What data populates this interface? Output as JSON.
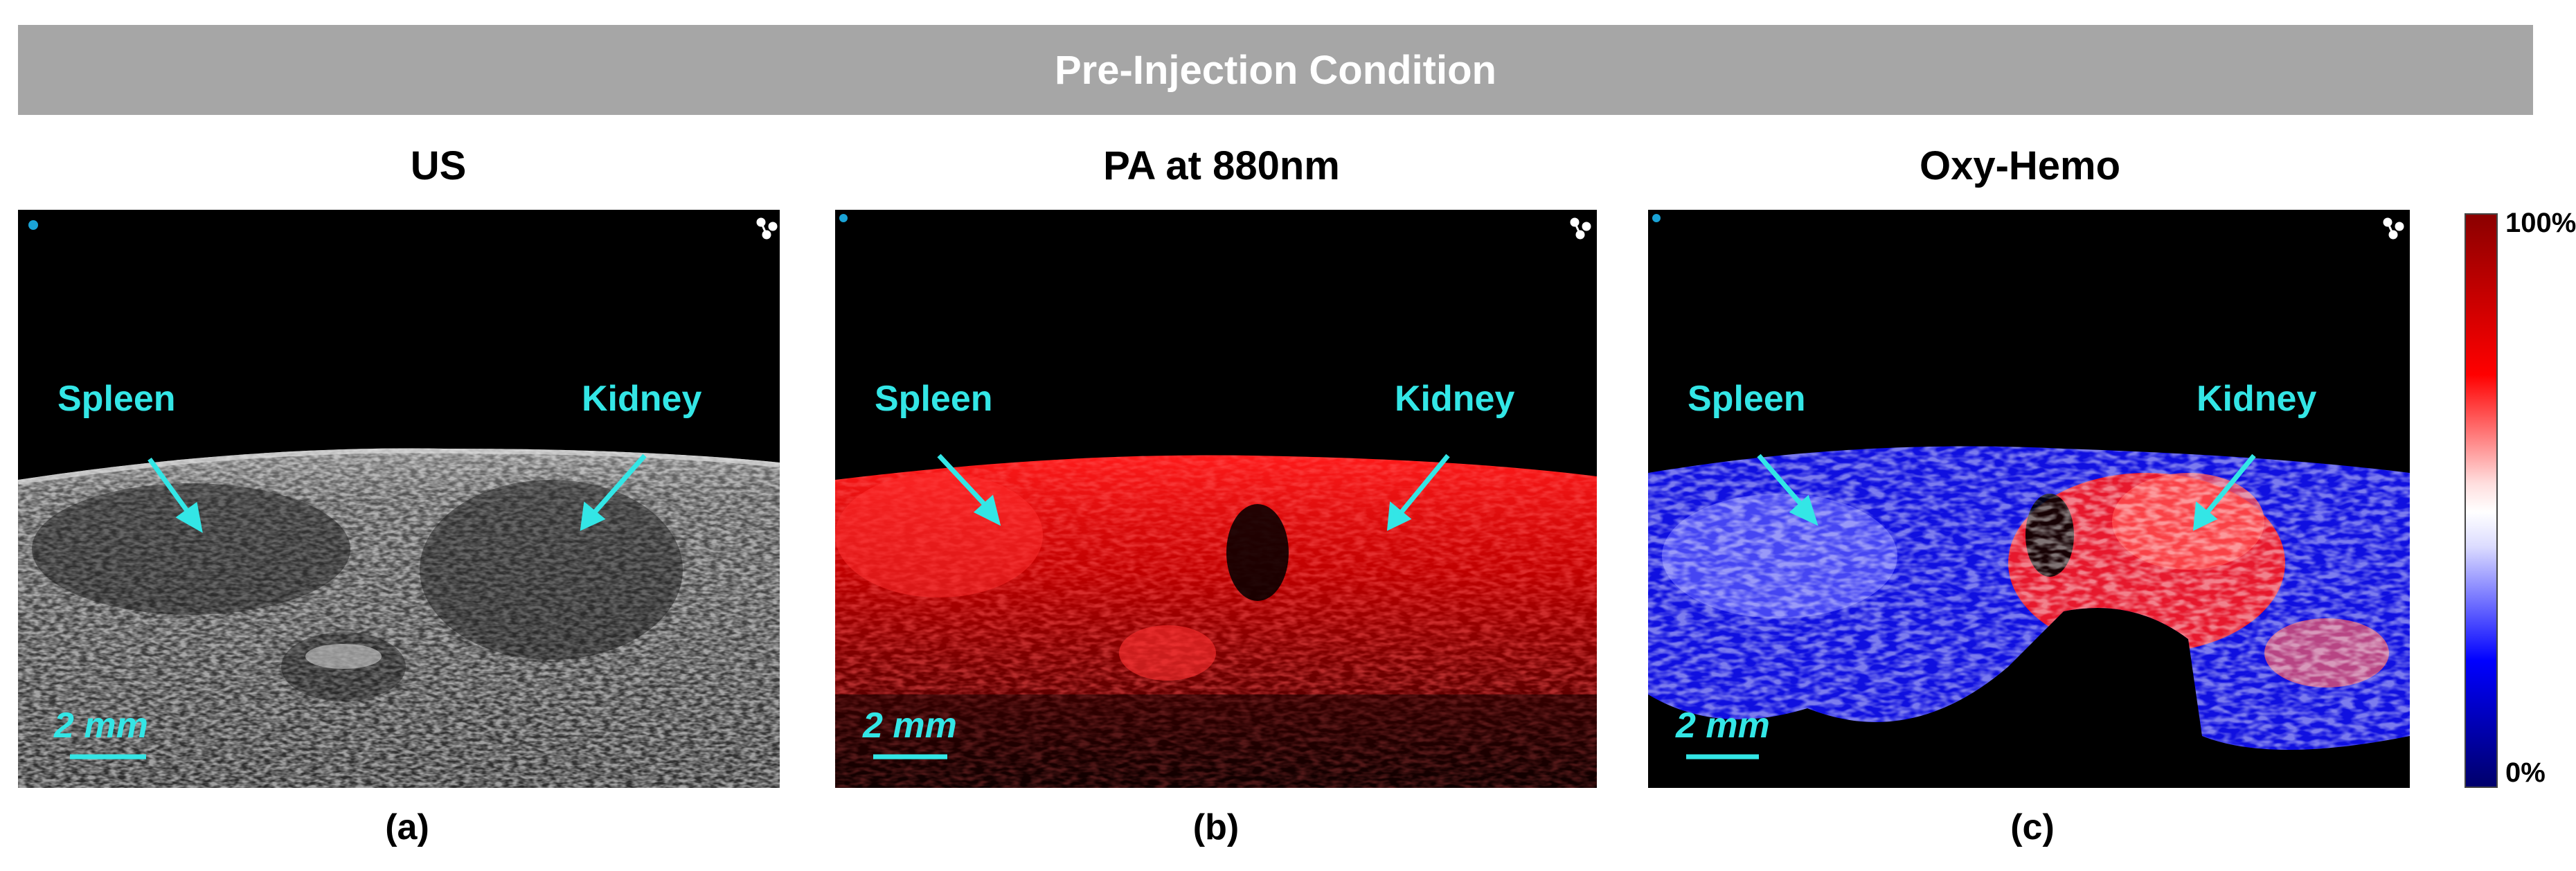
{
  "banner": {
    "title": "Pre-Injection Condition"
  },
  "panels": [
    {
      "title": "US",
      "caption": "(a)",
      "organ_left": "Spleen",
      "organ_right": "Kidney",
      "scale_bar": "2 mm"
    },
    {
      "title": "PA at 880nm",
      "caption": "(b)",
      "organ_left": "Spleen",
      "organ_right": "Kidney",
      "scale_bar": "2 mm"
    },
    {
      "title": "Oxy-Hemo",
      "caption": "(c)",
      "organ_left": "Spleen",
      "organ_right": "Kidney",
      "scale_bar": "2 mm"
    }
  ],
  "colorbar": {
    "max_label": "100%",
    "min_label": "0%"
  },
  "colors": {
    "annotation": "#33e6e6",
    "banner": "#a6a6a6",
    "marker": "#1aa3d6"
  }
}
